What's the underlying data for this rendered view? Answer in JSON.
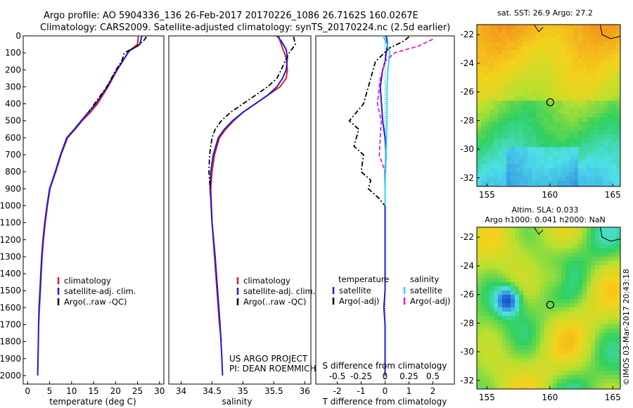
{
  "header": {
    "title_line1": "Argo profile: AO 5904336_136 26-Feb-2017 20170226_1086 26.7162S 160.0267E",
    "title_line2": "Climatology: CARS2009. Satellite-adjusted climatology: synTS_20170224.nc (2.5d earlier)"
  },
  "credit": "©IMOS 03-Mar-2017 20:43:18",
  "colors": {
    "red": "#e21f1f",
    "blue": "#1c1cdc",
    "black": "#000000",
    "cyan": "#22e0e8",
    "magenta": "#dd22dd"
  },
  "chart_data": [
    {
      "type": "line",
      "panel": "temperature",
      "xlabel": "temperature (deg C)",
      "ylim": [
        2050,
        0
      ],
      "xlim": [
        -1,
        31
      ],
      "xticks": [
        0,
        5,
        10,
        15,
        20,
        25,
        30
      ],
      "yticks": [
        0,
        100,
        200,
        300,
        400,
        500,
        600,
        700,
        800,
        900,
        1000,
        1100,
        1200,
        1300,
        1400,
        1500,
        1600,
        1700,
        1800,
        1900,
        2000
      ],
      "legend": [
        "climatology",
        "satellite-adj. clim.",
        "Argo(..raw -QC)"
      ],
      "series": [
        {
          "name": "climatology",
          "color": "red",
          "style": "solid",
          "x": [
            25.2,
            25.0,
            23.0,
            21.6,
            20.4,
            18.3,
            15.9,
            14.3,
            12.4,
            10.8,
            9.1,
            7.6,
            6.4,
            5.1,
            4.5,
            4.0,
            3.6,
            3.3,
            3.1,
            2.9,
            2.7,
            2.5
          ],
          "y": [
            0,
            50,
            90,
            150,
            200,
            300,
            400,
            450,
            500,
            550,
            600,
            700,
            800,
            900,
            1000,
            1100,
            1200,
            1300,
            1400,
            1500,
            1600,
            1700
          ]
        },
        {
          "name": "satellite-adj. clim.",
          "color": "blue",
          "style": "solid",
          "x": [
            26.0,
            25.5,
            23.1,
            21.6,
            20.3,
            18.1,
            15.5,
            13.8,
            12.2,
            10.6,
            8.9,
            7.5,
            6.3,
            5.0,
            4.4,
            3.9,
            3.5,
            3.2,
            3.0,
            2.8,
            2.6,
            2.5,
            2.4,
            2.3
          ],
          "y": [
            0,
            50,
            90,
            150,
            200,
            300,
            400,
            450,
            500,
            550,
            600,
            700,
            800,
            900,
            1000,
            1100,
            1200,
            1300,
            1400,
            1500,
            1600,
            1700,
            1850,
            2000
          ]
        },
        {
          "name": "Argo(..raw -QC)",
          "color": "black",
          "style": "dashdot",
          "x": [
            27.0,
            26.5,
            25.0,
            22.0,
            21.4,
            20.1,
            18.0,
            15.2,
            13.9
          ],
          "y": [
            5,
            25,
            60,
            100,
            150,
            200,
            300,
            400,
            450
          ]
        }
      ]
    },
    {
      "type": "line",
      "panel": "salinity",
      "xlabel": "salinity",
      "ylim": [
        2050,
        0
      ],
      "xlim": [
        33.8,
        36.1
      ],
      "xticks": [
        34,
        34.5,
        35,
        35.5,
        36
      ],
      "legend": [
        "climatology",
        "satellite-adj. clim.",
        "Argo(..raw -QC)"
      ],
      "annotation": [
        "US ARGO PROJECT",
        "PI: DEAN ROEMMICH"
      ],
      "series": [
        {
          "name": "climatology",
          "color": "red",
          "style": "solid",
          "x": [
            35.58,
            35.6,
            35.65,
            35.7,
            35.72,
            35.7,
            35.6,
            35.4,
            35.2,
            35.0,
            34.85,
            34.72,
            34.62,
            34.54,
            34.5,
            34.48,
            34.5,
            34.54,
            34.58,
            34.62,
            34.65
          ],
          "y": [
            0,
            30,
            80,
            130,
            200,
            250,
            300,
            350,
            400,
            450,
            500,
            550,
            600,
            700,
            800,
            900,
            1100,
            1300,
            1500,
            1700,
            1800
          ]
        },
        {
          "name": "satellite-adj. clim.",
          "color": "blue",
          "style": "solid",
          "x": [
            35.55,
            35.62,
            35.7,
            35.72,
            35.7,
            35.64,
            35.55,
            35.4,
            35.2,
            35.0,
            34.83,
            34.7,
            34.6,
            34.52,
            34.48,
            34.47,
            34.5,
            34.55,
            34.59,
            34.63,
            34.66,
            34.67
          ],
          "y": [
            0,
            30,
            80,
            130,
            200,
            250,
            300,
            350,
            400,
            450,
            500,
            550,
            600,
            700,
            800,
            900,
            1100,
            1300,
            1500,
            1700,
            1900,
            2000
          ]
        },
        {
          "name": "Argo(..raw -QC)",
          "color": "black",
          "style": "dashdot",
          "x": [
            35.82,
            35.85,
            35.75,
            35.68,
            35.62,
            35.55,
            35.4,
            35.2,
            35.0,
            34.8,
            34.65,
            34.55,
            34.5,
            34.46,
            34.45,
            34.47
          ],
          "y": [
            5,
            50,
            100,
            150,
            200,
            250,
            300,
            350,
            400,
            450,
            500,
            550,
            600,
            700,
            800,
            900
          ]
        }
      ]
    },
    {
      "type": "line",
      "panel": "difference",
      "xlabel": "T difference from climatology",
      "xlabel_top": "S difference from climatology",
      "ylim": [
        2050,
        0
      ],
      "xlim": [
        -2.9,
        2.9
      ],
      "xticks": [
        -2,
        -1,
        0,
        1,
        2
      ],
      "xticks_S": [
        -0.5,
        -0.25,
        0,
        0.25,
        0.5
      ],
      "legend_headers": [
        "temperature",
        "salinity"
      ],
      "legend": [
        "satellite",
        "Argo(-adj)",
        "satellite",
        "Argo(-adj)"
      ],
      "series": [
        {
          "name": "satellite",
          "group": "temperature",
          "color": "blue",
          "style": "solid",
          "x": [
            0.05,
            0.1,
            0.05,
            0.0,
            -0.1,
            -0.2,
            -0.15,
            -0.1,
            0.0,
            0.05,
            0.0,
            0.0,
            0.0,
            0.0,
            0.0,
            0.0,
            -0.05,
            0.0,
            0.0,
            0.0
          ],
          "y": [
            0,
            50,
            100,
            150,
            200,
            300,
            400,
            500,
            600,
            700,
            800,
            900,
            1000,
            1100,
            1300,
            1500,
            1600,
            1700,
            1800,
            2000
          ]
        },
        {
          "name": "Argo(-adj)",
          "group": "temperature",
          "color": "black",
          "style": "dashdot",
          "x": [
            1.0,
            0.8,
            0.2,
            -0.4,
            -0.6,
            -0.9,
            -1.5,
            -1.1,
            -1.3,
            -0.9,
            -1.0,
            -0.6,
            -0.7,
            -0.3,
            0.0
          ],
          "y": [
            5,
            30,
            70,
            150,
            250,
            400,
            500,
            550,
            650,
            700,
            800,
            850,
            900,
            950,
            1000
          ]
        },
        {
          "name": "satellite",
          "group": "salinity",
          "color": "cyan",
          "style": "solid",
          "x": [
            -0.02,
            0.02,
            0.05,
            0.03,
            0.02,
            0.02,
            0.01,
            0.0,
            0.0
          ],
          "y": [
            0,
            50,
            100,
            200,
            300,
            500,
            700,
            900,
            1000
          ]
        },
        {
          "name": "Argo(-adj)",
          "group": "salinity",
          "color": "magenta",
          "style": "dashed",
          "x": [
            0.5,
            0.35,
            0.1,
            0.0,
            -0.05,
            -0.08,
            -0.04,
            -0.06,
            0.0
          ],
          "y": [
            20,
            60,
            100,
            150,
            250,
            400,
            500,
            700,
            800
          ]
        }
      ]
    },
    {
      "type": "heatmap",
      "panel": "sst-map",
      "title": "sat. SST: 26.9  Argo: 27.2",
      "xticks": [
        155,
        160,
        165
      ],
      "yticks": [
        -22,
        -24,
        -26,
        -28,
        -30,
        -32
      ],
      "xlim": [
        154.2,
        165.6
      ],
      "ylim": [
        -32.6,
        -21.3
      ],
      "marker": {
        "lon": 160.03,
        "lat": -26.72
      }
    },
    {
      "type": "heatmap",
      "panel": "sla-map",
      "title": "Altim. SLA: 0.033",
      "subtitle": "Argo h1000: 0.041 h2000: NaN",
      "xticks": [
        155,
        160,
        165
      ],
      "yticks": [
        -22,
        -24,
        -26,
        -28,
        -30,
        -32
      ],
      "xlim": [
        154.2,
        165.6
      ],
      "ylim": [
        -32.6,
        -21.3
      ],
      "marker": {
        "lon": 160.03,
        "lat": -26.72
      }
    }
  ]
}
